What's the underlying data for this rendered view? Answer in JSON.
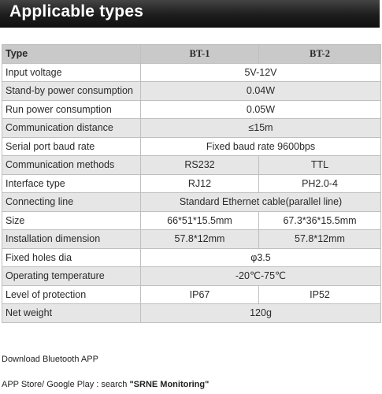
{
  "banner": {
    "title": "Applicable types"
  },
  "table": {
    "header": [
      "Type",
      "BT-1",
      "BT-2"
    ],
    "rows": [
      {
        "label": "Input voltage",
        "span": "5V-12V"
      },
      {
        "label": "Stand-by power consumption",
        "span": "0.04W"
      },
      {
        "label": "Run power consumption",
        "span": "0.05W"
      },
      {
        "label": "Communication distance",
        "span": "≤15m"
      },
      {
        "label": "Serial port baud rate",
        "span": "Fixed baud rate 9600bps"
      },
      {
        "label": "Communication methods",
        "bt1": "RS232",
        "bt2": "TTL"
      },
      {
        "label": "Interface type",
        "bt1": "RJ12",
        "bt2": "PH2.0-4"
      },
      {
        "label": "Connecting line",
        "span": "Standard Ethernet cable(parallel line)"
      },
      {
        "label": "Size",
        "bt1": "66*51*15.5mm",
        "bt2": "67.3*36*15.5mm"
      },
      {
        "label": "Installation dimension",
        "bt1": "57.8*12mm",
        "bt2": "57.8*12mm"
      },
      {
        "label": "Fixed holes dia",
        "span": "φ3.5"
      },
      {
        "label": "Operating temperature",
        "span": "-20℃-75℃"
      },
      {
        "label": "Level of protection",
        "bt1": "IP67",
        "bt2": "IP52"
      },
      {
        "label": "Net weight",
        "span": "120g"
      }
    ]
  },
  "notes": {
    "download": "Download Bluetooth APP",
    "store_prefix": "APP Store/ Google Play : search ",
    "store_term": "\"SRNE Monitoring\""
  }
}
